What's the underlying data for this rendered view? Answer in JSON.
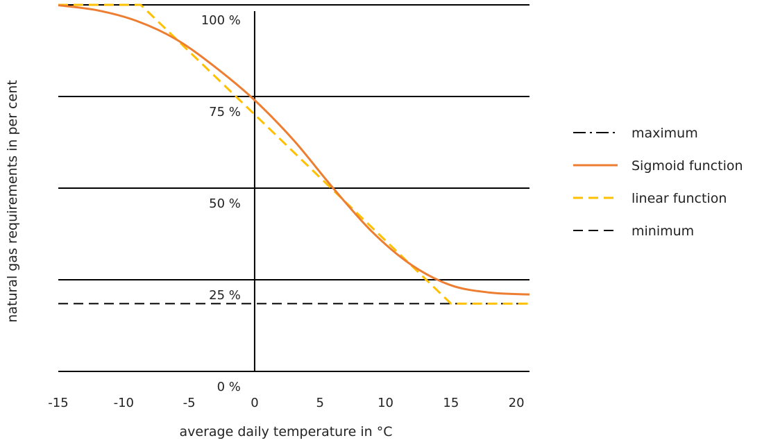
{
  "chart_data": {
    "type": "line",
    "xlabel": "average daily temperature in °C",
    "ylabel": "natural gas requirements in per cent",
    "xlim": [
      -15,
      21
    ],
    "x_ticks": [
      -15,
      -10,
      -5,
      0,
      5,
      10,
      15,
      20
    ],
    "y_ticks": [
      {
        "value": 100,
        "label": "100 %"
      },
      {
        "value": 75,
        "label": "75 %"
      },
      {
        "value": 50,
        "label": "50 %"
      },
      {
        "value": 25,
        "label": "25 %"
      },
      {
        "value": 0,
        "label": "0 %"
      }
    ],
    "grid": true,
    "legend_position": "right",
    "series": [
      {
        "name": "maximum",
        "style": "dash-dot",
        "color": "#000000",
        "x": [
          -15,
          21
        ],
        "y": [
          100,
          100
        ]
      },
      {
        "name": "Sigmoid function",
        "style": "solid",
        "color": "#ED7D31",
        "x": [
          -15,
          -12,
          -9,
          -6,
          -3,
          0,
          3,
          6,
          9,
          12,
          15,
          18,
          21
        ],
        "y": [
          99.9,
          98.5,
          95.6,
          90.6,
          83,
          74,
          63,
          50,
          38,
          29,
          23.5,
          21.5,
          21
        ]
      },
      {
        "name": "linear function",
        "style": "dashed",
        "color": "#FFC000",
        "x": [
          -15,
          -8.7,
          15,
          21
        ],
        "y": [
          100,
          100,
          18.5,
          18.5
        ]
      },
      {
        "name": "minimum",
        "style": "dashed",
        "color": "#000000",
        "x": [
          -15,
          21
        ],
        "y": [
          18.5,
          18.5
        ]
      }
    ]
  }
}
